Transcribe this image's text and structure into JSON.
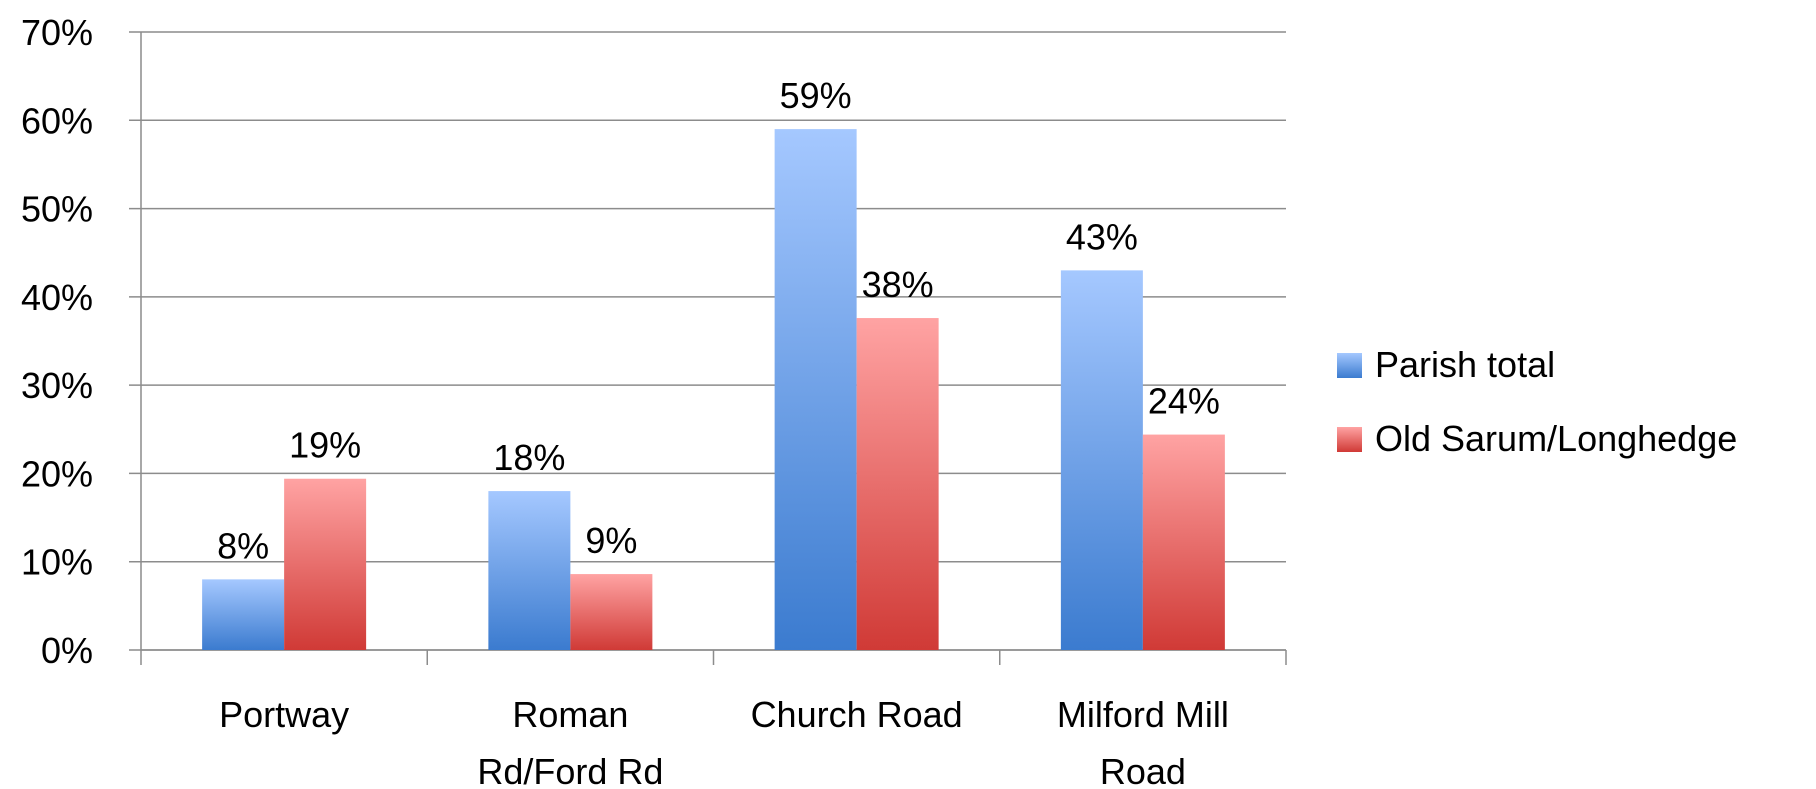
{
  "chart_data": {
    "type": "bar",
    "categories": [
      [
        "Portway"
      ],
      [
        "Roman",
        "Rd/Ford Rd"
      ],
      [
        "Church Road"
      ],
      [
        "Milford Mill",
        "Road"
      ]
    ],
    "series": [
      {
        "name": "Parish total",
        "values": [
          8,
          18,
          59,
          43
        ],
        "labels": [
          "8%",
          "18%",
          "59%",
          "43%"
        ],
        "color_top": "#a5c8ff",
        "color_bottom": "#3b7bcf"
      },
      {
        "name": "Old Sarum/Longhedge",
        "values": [
          19.4,
          8.6,
          37.6,
          24.4
        ],
        "labels": [
          "19%",
          "9%",
          "38%",
          "24%"
        ],
        "color_top": "#ffa3a3",
        "color_bottom": "#d03a36"
      }
    ],
    "ylim": [
      0,
      70
    ],
    "yticks": [
      0,
      10,
      20,
      30,
      40,
      50,
      60,
      70
    ],
    "ytick_labels": [
      "0%",
      "10%",
      "20%",
      "30%",
      "40%",
      "50%",
      "60%",
      "70%"
    ],
    "grid": true,
    "legend_position": "right"
  }
}
